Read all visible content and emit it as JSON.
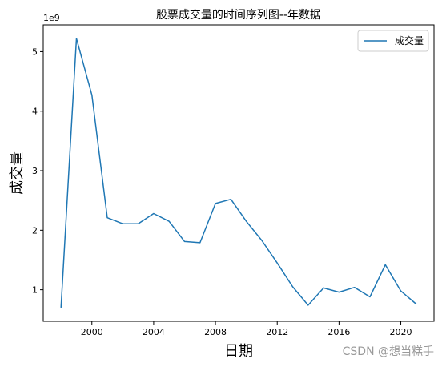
{
  "chart_data": {
    "type": "line",
    "title": "股票成交量的时间序列图--年数据",
    "xlabel": "日期",
    "ylabel": "成交量",
    "y_scale_label": "1e9",
    "x": [
      1998,
      1999,
      2000,
      2001,
      2002,
      2003,
      2004,
      2005,
      2006,
      2007,
      2008,
      2009,
      2010,
      2011,
      2012,
      2013,
      2014,
      2015,
      2016,
      2017,
      2018,
      2019,
      2020,
      2021
    ],
    "series": [
      {
        "name": "成交量",
        "color": "#1f77b4",
        "values": [
          0.7,
          5.22,
          4.27,
          2.21,
          2.11,
          2.11,
          2.28,
          2.15,
          1.81,
          1.79,
          2.45,
          2.52,
          2.15,
          1.83,
          1.45,
          1.05,
          0.74,
          1.03,
          0.96,
          1.04,
          0.88,
          1.42,
          0.98,
          0.76
        ]
      }
    ],
    "x_ticks": [
      "2000",
      "2004",
      "2008",
      "2012",
      "2016",
      "2020"
    ],
    "y_ticks": [
      "1",
      "2",
      "3",
      "4",
      "5"
    ],
    "xlim": [
      1996.85,
      2022.15
    ],
    "ylim": [
      0.47,
      5.45
    ],
    "legend_position": "top-right",
    "grid": false
  },
  "watermark": "CSDN @想当糕手"
}
